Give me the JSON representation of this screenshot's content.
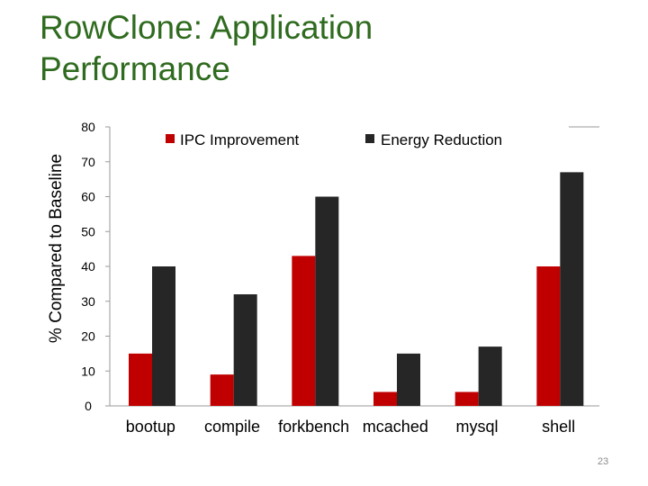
{
  "slide": {
    "title": "RowClone: Application\nPerformance",
    "page_number": "23"
  },
  "chart_data": {
    "type": "bar",
    "title": "",
    "xlabel": "",
    "ylabel": "% Compared to Baseline",
    "ylim": [
      0,
      80
    ],
    "yticks": [
      0,
      10,
      20,
      30,
      40,
      50,
      60,
      70,
      80
    ],
    "grid": false,
    "legend_position": "top",
    "categories": [
      "bootup",
      "compile",
      "forkbench",
      "mcached",
      "mysql",
      "shell"
    ],
    "series": [
      {
        "name": "IPC Improvement",
        "color": "#c00000",
        "values": [
          15,
          9,
          43,
          4,
          4,
          40
        ]
      },
      {
        "name": "Energy Reduction",
        "color": "#262626",
        "values": [
          40,
          32,
          60,
          15,
          17,
          67
        ]
      }
    ]
  }
}
